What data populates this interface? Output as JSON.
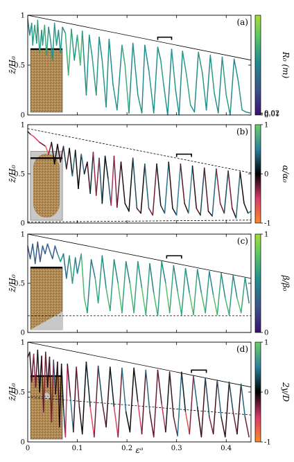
{
  "chart_data": [
    {
      "type": "line",
      "panel_label": "(a)",
      "ylabel": "z̄/H₀",
      "xlim": [
        0,
        0.45
      ],
      "ylim": [
        0,
        1
      ],
      "y_ticks": [
        "0",
        "0.5",
        "1"
      ],
      "colorbar": {
        "label": "R₀ (m)",
        "ticks": [
          "0",
          "0.01",
          "0.02"
        ],
        "colormap": "viridis",
        "colors": [
          "#3b0f70",
          "#3b528b",
          "#21918c",
          "#5ec962",
          "#a6db3a"
        ]
      },
      "reference_lines": [
        {
          "style": "solid",
          "from": [
            0,
            1.0
          ],
          "to": [
            0.45,
            0.55
          ]
        }
      ],
      "scale_bar": {
        "x": [
          0.262,
          0.29
        ],
        "y": 0.78
      },
      "series": [
        {
          "x": [
            0.0,
            0.004,
            0.008,
            0.01,
            0.014,
            0.018,
            0.02,
            0.024,
            0.028,
            0.03,
            0.034,
            0.038,
            0.042,
            0.046,
            0.05,
            0.054,
            0.058,
            0.062,
            0.066,
            0.07,
            0.076,
            0.082,
            0.088,
            0.094,
            0.1,
            0.106,
            0.11,
            0.118,
            0.124,
            0.13,
            0.138,
            0.144,
            0.15,
            0.158,
            0.164,
            0.172,
            0.18,
            0.19,
            0.196,
            0.204,
            0.212,
            0.222,
            0.23,
            0.236,
            0.244,
            0.254,
            0.262,
            0.268,
            0.274,
            0.282,
            0.29,
            0.298,
            0.305,
            0.312,
            0.32,
            0.328,
            0.336,
            0.344,
            0.352,
            0.36,
            0.368,
            0.376,
            0.384,
            0.392,
            0.4,
            0.408,
            0.416,
            0.424,
            0.432,
            0.44,
            0.448
          ],
          "y": [
            0.96,
            0.8,
            0.92,
            0.7,
            0.9,
            0.72,
            0.95,
            0.62,
            0.85,
            0.7,
            0.9,
            0.6,
            0.88,
            0.75,
            0.55,
            0.92,
            0.7,
            0.85,
            0.62,
            0.88,
            0.82,
            0.4,
            0.86,
            0.55,
            0.8,
            0.5,
            0.84,
            0.2,
            0.8,
            0.58,
            0.2,
            0.78,
            0.55,
            0.08,
            0.76,
            0.3,
            0.05,
            0.7,
            0.5,
            0.02,
            0.72,
            0.2,
            0.02,
            0.7,
            0.45,
            0.02,
            0.68,
            0.55,
            0.3,
            0.0,
            0.66,
            0.25,
            0.0,
            0.64,
            0.4,
            0.1,
            0.03,
            0.63,
            0.42,
            0.05,
            0.6,
            0.22,
            0.02,
            0.58,
            0.2,
            0.0,
            0.56,
            0.35,
            0.05,
            0.03,
            0.02
          ],
          "c": [
            0.5,
            0.4,
            0.6,
            0.45,
            0.7,
            0.5,
            0.55,
            0.6,
            0.5,
            0.45,
            0.75,
            0.5,
            0.6,
            0.45,
            0.55,
            0.5,
            0.6,
            0.45,
            0.55,
            0.5,
            0.45,
            0.8,
            0.5,
            0.55,
            0.45,
            0.85,
            0.5,
            0.45,
            0.55,
            0.5,
            0.6,
            0.45,
            0.5,
            0.55,
            0.45,
            0.5,
            0.55,
            0.45,
            0.75,
            0.5,
            0.45,
            0.55,
            0.5,
            0.45,
            0.5,
            0.55,
            0.45,
            0.5,
            0.6,
            0.45,
            0.5,
            0.55,
            0.45,
            0.5,
            0.6,
            0.55,
            0.45,
            0.5,
            0.6,
            0.45,
            0.5,
            0.55,
            0.45,
            0.5,
            0.6,
            0.5,
            0.45,
            0.5,
            0.55,
            0.5,
            0.45
          ]
        }
      ]
    },
    {
      "type": "line",
      "panel_label": "(b)",
      "ylabel": "z̄/H₀",
      "xlim": [
        0,
        0.45
      ],
      "ylim": [
        0,
        1
      ],
      "y_ticks": [
        "0",
        "0.5",
        "1"
      ],
      "colorbar": {
        "label": "α/α₀",
        "ticks": [
          "-1",
          "0",
          "1"
        ],
        "colormap": "diverging",
        "colors": [
          "#fb8c24",
          "#d93a6a",
          "#000000",
          "#2d7f9e",
          "#6ed06a"
        ]
      },
      "reference_lines": [
        {
          "style": "dashed",
          "from": [
            0,
            0.96
          ],
          "to": [
            0.45,
            0.51
          ]
        },
        {
          "style": "dashed",
          "from": [
            0,
            0.01
          ],
          "to": [
            0.45,
            0.03
          ]
        }
      ],
      "scale_bar": {
        "x": [
          0.3,
          0.33
        ],
        "y": 0.7
      },
      "series": [
        {
          "x": [
            0.0,
            0.006,
            0.012,
            0.018,
            0.024,
            0.03,
            0.036,
            0.042,
            0.048,
            0.054,
            0.06,
            0.066,
            0.072,
            0.078,
            0.084,
            0.09,
            0.096,
            0.102,
            0.108,
            0.114,
            0.12,
            0.126,
            0.132,
            0.138,
            0.144,
            0.15,
            0.156,
            0.162,
            0.168,
            0.174,
            0.18,
            0.188,
            0.196,
            0.204,
            0.212,
            0.22,
            0.228,
            0.236,
            0.244,
            0.252,
            0.26,
            0.268,
            0.276,
            0.284,
            0.292,
            0.3,
            0.308,
            0.316,
            0.324,
            0.332,
            0.34,
            0.348,
            0.356,
            0.364,
            0.372,
            0.38,
            0.388,
            0.396,
            0.404,
            0.412,
            0.42,
            0.428,
            0.436,
            0.444,
            0.45
          ],
          "y": [
            0.93,
            0.9,
            0.88,
            0.85,
            0.82,
            0.8,
            0.78,
            0.7,
            0.82,
            0.6,
            0.8,
            0.62,
            0.78,
            0.55,
            0.76,
            0.48,
            0.74,
            0.35,
            0.7,
            0.5,
            0.62,
            0.3,
            0.72,
            0.28,
            0.66,
            0.2,
            0.68,
            0.45,
            0.18,
            0.68,
            0.16,
            0.62,
            0.2,
            0.12,
            0.66,
            0.15,
            0.1,
            0.6,
            0.15,
            0.08,
            0.6,
            0.18,
            0.1,
            0.62,
            0.15,
            0.08,
            0.6,
            0.2,
            0.1,
            0.58,
            0.15,
            0.08,
            0.56,
            0.12,
            0.07,
            0.55,
            0.2,
            0.1,
            0.53,
            0.15,
            0.05,
            0.52,
            0.2,
            0.1,
            0.12
          ],
          "c": [
            0.1,
            -0.5,
            -0.8,
            -0.3,
            -0.7,
            0.2,
            -0.6,
            -0.9,
            0.3,
            -0.4,
            0.5,
            -0.7,
            0.4,
            0.1,
            -0.5,
            0.6,
            0.2,
            -0.3,
            0.4,
            0.5,
            -0.6,
            0.3,
            0.1,
            -0.8,
            0.2,
            0.5,
            -0.4,
            0.6,
            0.1,
            -0.9,
            0.3,
            -0.7,
            0.5,
            -0.3,
            0.4,
            0.2,
            -0.6,
            0.5,
            0.3,
            -0.9,
            0.4,
            -0.2,
            0.6,
            0.3,
            -0.5,
            0.7,
            0.3,
            -0.7,
            0.5,
            0.6,
            -0.8,
            0.4,
            0.2,
            -0.6,
            0.5,
            0.3,
            -0.9,
            0.4,
            0.2,
            -0.7,
            0.5,
            0.3,
            -0.4,
            0.6,
            0.2
          ]
        }
      ]
    },
    {
      "type": "line",
      "panel_label": "(c)",
      "ylabel": "z̄/H₀",
      "xlim": [
        0,
        0.45
      ],
      "ylim": [
        0,
        1
      ],
      "y_ticks": [
        "0",
        "0.5",
        "1"
      ],
      "colorbar": {
        "label": "β/β₀",
        "ticks": [
          "0",
          "1"
        ],
        "colormap": "viridis",
        "colors": [
          "#3b0f70",
          "#3b528b",
          "#21918c",
          "#5ec962",
          "#a6db3a"
        ]
      },
      "reference_lines": [
        {
          "style": "solid",
          "from": [
            0,
            1.0
          ],
          "to": [
            0.45,
            0.55
          ]
        },
        {
          "style": "dashed",
          "from": [
            0,
            0.17
          ],
          "to": [
            0.45,
            0.17
          ]
        }
      ],
      "scale_bar": {
        "x": [
          0.28,
          0.31
        ],
        "y": 0.78
      },
      "series": [
        {
          "x": [
            0.0,
            0.005,
            0.01,
            0.015,
            0.02,
            0.025,
            0.03,
            0.035,
            0.04,
            0.045,
            0.05,
            0.055,
            0.06,
            0.066,
            0.072,
            0.078,
            0.084,
            0.09,
            0.096,
            0.1,
            0.108,
            0.114,
            0.12,
            0.128,
            0.136,
            0.142,
            0.15,
            0.158,
            0.166,
            0.174,
            0.182,
            0.19,
            0.198,
            0.206,
            0.214,
            0.222,
            0.23,
            0.238,
            0.246,
            0.254,
            0.262,
            0.27,
            0.278,
            0.286,
            0.294,
            0.302,
            0.31,
            0.318,
            0.326,
            0.334,
            0.342,
            0.35,
            0.358,
            0.366,
            0.374,
            0.382,
            0.39,
            0.398,
            0.406,
            0.414,
            0.422,
            0.43,
            0.438,
            0.446
          ],
          "y": [
            0.88,
            0.75,
            0.9,
            0.7,
            0.92,
            0.72,
            0.88,
            0.8,
            0.9,
            0.82,
            0.75,
            0.88,
            0.8,
            0.72,
            0.8,
            0.55,
            0.78,
            0.5,
            0.76,
            0.6,
            0.8,
            0.35,
            0.2,
            0.74,
            0.55,
            0.3,
            0.78,
            0.45,
            0.22,
            0.74,
            0.5,
            0.2,
            0.72,
            0.5,
            0.2,
            0.72,
            0.45,
            0.18,
            0.7,
            0.4,
            0.17,
            0.72,
            0.5,
            0.2,
            0.68,
            0.42,
            0.18,
            0.65,
            0.4,
            0.18,
            0.64,
            0.4,
            0.2,
            0.62,
            0.38,
            0.18,
            0.6,
            0.35,
            0.18,
            0.58,
            0.35,
            0.2,
            0.56,
            0.3
          ],
          "c": [
            0.3,
            0.2,
            0.4,
            0.25,
            0.3,
            0.2,
            0.35,
            0.3,
            0.25,
            0.4,
            0.3,
            0.2,
            0.45,
            0.6,
            0.4,
            0.3,
            0.5,
            0.7,
            0.35,
            0.4,
            0.55,
            0.8,
            0.6,
            0.3,
            0.5,
            0.75,
            0.35,
            0.55,
            0.8,
            0.3,
            0.6,
            0.85,
            0.3,
            0.55,
            0.8,
            0.35,
            0.6,
            0.85,
            0.3,
            0.55,
            0.8,
            0.3,
            0.6,
            0.85,
            0.35,
            0.55,
            0.8,
            0.3,
            0.6,
            0.85,
            0.35,
            0.55,
            0.8,
            0.3,
            0.6,
            0.85,
            0.35,
            0.55,
            0.8,
            0.3,
            0.6,
            0.85,
            0.35,
            0.55
          ]
        }
      ]
    },
    {
      "type": "line",
      "panel_label": "(d)",
      "ylabel": "z̄/H₀",
      "xlabel": "εᵃ",
      "xlim": [
        0,
        0.45
      ],
      "ylim": [
        0,
        1
      ],
      "x_ticks": [
        "0",
        "0.1",
        "0.2",
        "0.3",
        "0.4"
      ],
      "y_ticks": [
        "0",
        "0.5",
        "1"
      ],
      "colorbar": {
        "label": "2y/D",
        "ticks": [
          "-1",
          "0",
          "1"
        ],
        "colormap": "diverging",
        "colors": [
          "#fb8c24",
          "#d93a6a",
          "#000000",
          "#2d7f9e",
          "#6ed06a"
        ]
      },
      "reference_lines": [
        {
          "style": "solid",
          "from": [
            0,
            1.0
          ],
          "to": [
            0.45,
            0.55
          ]
        },
        {
          "style": "dashed",
          "from": [
            0,
            0.45
          ],
          "to": [
            0.45,
            0.27
          ]
        }
      ],
      "scale_bar": {
        "x": [
          0.33,
          0.36
        ],
        "y": 0.72
      },
      "series": [
        {
          "x": [
            0.0,
            0.004,
            0.008,
            0.012,
            0.016,
            0.02,
            0.024,
            0.028,
            0.032,
            0.036,
            0.04,
            0.044,
            0.048,
            0.052,
            0.056,
            0.06,
            0.064,
            0.068,
            0.072,
            0.076,
            0.08,
            0.086,
            0.092,
            0.098,
            0.104,
            0.11,
            0.118,
            0.126,
            0.134,
            0.142,
            0.15,
            0.158,
            0.166,
            0.174,
            0.182,
            0.19,
            0.198,
            0.206,
            0.214,
            0.222,
            0.23,
            0.238,
            0.246,
            0.254,
            0.262,
            0.27,
            0.278,
            0.286,
            0.294,
            0.302,
            0.31,
            0.318,
            0.326,
            0.334,
            0.342,
            0.35,
            0.358,
            0.366,
            0.374,
            0.382,
            0.39,
            0.398,
            0.406,
            0.414,
            0.422,
            0.43,
            0.438,
            0.446
          ],
          "y": [
            0.85,
            0.9,
            0.6,
            0.88,
            0.55,
            0.92,
            0.5,
            0.86,
            0.3,
            0.9,
            0.55,
            0.85,
            0.2,
            0.82,
            0.48,
            0.8,
            0.15,
            0.78,
            0.35,
            0.05,
            0.78,
            0.45,
            0.1,
            0.75,
            0.35,
            0.08,
            0.8,
            0.35,
            0.05,
            0.76,
            0.4,
            0.15,
            0.75,
            0.35,
            0.05,
            0.74,
            0.3,
            0.1,
            0.74,
            0.4,
            0.08,
            0.72,
            0.3,
            0.05,
            0.72,
            0.38,
            0.1,
            0.7,
            0.25,
            0.06,
            0.7,
            0.3,
            0.08,
            0.66,
            0.35,
            0.05,
            0.64,
            0.25,
            0.08,
            0.62,
            0.25,
            0.05,
            0.6,
            0.3,
            0.08,
            0.58,
            0.25,
            0.05
          ],
          "c": [
            -0.8,
            0.4,
            -0.6,
            0.2,
            -0.9,
            0.5,
            -0.3,
            0.3,
            -0.7,
            0.1,
            -0.5,
            0.4,
            -0.8,
            0.2,
            0.5,
            -0.6,
            0.3,
            -0.4,
            0.6,
            -0.2,
            -0.7,
            0.4,
            0.5,
            -0.8,
            0.3,
            -0.5,
            0.6,
            -0.3,
            -0.9,
            0.4,
            0.2,
            -0.7,
            0.5,
            -0.3,
            -0.8,
            0.3,
            0.6,
            -0.5,
            0.4,
            -0.2,
            -0.9,
            0.5,
            0.3,
            -0.7,
            0.2,
            -0.6,
            -0.3,
            0.5,
            -0.8,
            0.3,
            0.6,
            -0.4,
            -0.9,
            0.3,
            0.5,
            -0.7,
            0.4,
            0.2,
            -0.8,
            0.5,
            0.3,
            -0.6,
            0.4,
            0.2,
            -0.7,
            0.5,
            0.3,
            -0.8
          ]
        }
      ]
    }
  ]
}
